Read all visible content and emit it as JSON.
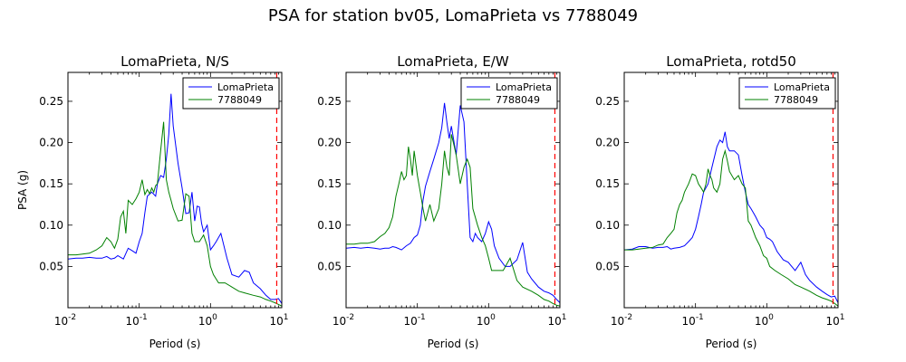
{
  "figure": {
    "suptitle": "PSA for station bv05, LomaPrieta vs 7788049"
  },
  "colors": {
    "series_1": "#0000ff",
    "series_2": "#008000",
    "marker_line": "#ff0000"
  },
  "chart_data": [
    {
      "type": "line",
      "title": "LomaPrieta, N/S",
      "xlabel": "Period (s)",
      "ylabel": "PSA (g)",
      "xscale": "log",
      "xlim": [
        0.01,
        10
      ],
      "ylim": [
        0.0,
        0.285
      ],
      "x_ticks": [
        {
          "value": 0.01,
          "base": "10",
          "exp": "-2"
        },
        {
          "value": 0.1,
          "base": "10",
          "exp": "-1"
        },
        {
          "value": 1,
          "base": "10",
          "exp": "0"
        },
        {
          "value": 10,
          "base": "10",
          "exp": "1"
        }
      ],
      "y_ticks": [
        "0.05",
        "0.10",
        "0.15",
        "0.20",
        "0.25"
      ],
      "legend_position": "top-right",
      "vline_x": 8.5,
      "series": [
        {
          "name": "LomaPrieta",
          "x": [
            0.01,
            0.013,
            0.016,
            0.02,
            0.025,
            0.03,
            0.035,
            0.04,
            0.045,
            0.05,
            0.06,
            0.07,
            0.08,
            0.09,
            0.1,
            0.11,
            0.12,
            0.13,
            0.15,
            0.17,
            0.18,
            0.2,
            0.22,
            0.24,
            0.26,
            0.28,
            0.3,
            0.35,
            0.4,
            0.45,
            0.5,
            0.55,
            0.6,
            0.65,
            0.7,
            0.75,
            0.8,
            0.9,
            1.0,
            1.1,
            1.2,
            1.4,
            1.7,
            2.0,
            2.5,
            3.0,
            3.5,
            4.0,
            5.0,
            6.0,
            7.0,
            8.0,
            9.0,
            10.0
          ],
          "values": [
            0.059,
            0.06,
            0.06,
            0.061,
            0.06,
            0.06,
            0.062,
            0.059,
            0.06,
            0.063,
            0.059,
            0.072,
            0.069,
            0.066,
            0.08,
            0.09,
            0.115,
            0.135,
            0.14,
            0.135,
            0.15,
            0.16,
            0.158,
            0.18,
            0.21,
            0.259,
            0.22,
            0.175,
            0.145,
            0.114,
            0.115,
            0.14,
            0.105,
            0.123,
            0.122,
            0.102,
            0.092,
            0.1,
            0.07,
            0.075,
            0.08,
            0.09,
            0.06,
            0.04,
            0.037,
            0.045,
            0.043,
            0.03,
            0.023,
            0.015,
            0.01,
            0.01,
            0.011,
            0.005
          ]
        },
        {
          "name": "7788049",
          "x": [
            0.01,
            0.013,
            0.016,
            0.02,
            0.025,
            0.03,
            0.035,
            0.04,
            0.045,
            0.05,
            0.055,
            0.06,
            0.065,
            0.07,
            0.08,
            0.09,
            0.1,
            0.11,
            0.12,
            0.13,
            0.14,
            0.15,
            0.16,
            0.17,
            0.18,
            0.2,
            0.22,
            0.24,
            0.26,
            0.28,
            0.3,
            0.35,
            0.4,
            0.45,
            0.5,
            0.55,
            0.6,
            0.7,
            0.8,
            0.9,
            1.0,
            1.1,
            1.3,
            1.6,
            2.0,
            2.5,
            3.0,
            4.0,
            5.0,
            6.0,
            7.0,
            8.0,
            9.0,
            10.0
          ],
          "values": [
            0.064,
            0.064,
            0.065,
            0.066,
            0.07,
            0.075,
            0.085,
            0.08,
            0.072,
            0.083,
            0.11,
            0.117,
            0.09,
            0.13,
            0.125,
            0.132,
            0.14,
            0.155,
            0.137,
            0.143,
            0.138,
            0.145,
            0.14,
            0.148,
            0.15,
            0.19,
            0.225,
            0.155,
            0.14,
            0.13,
            0.12,
            0.105,
            0.106,
            0.138,
            0.135,
            0.09,
            0.08,
            0.08,
            0.088,
            0.075,
            0.05,
            0.04,
            0.03,
            0.03,
            0.025,
            0.02,
            0.018,
            0.015,
            0.013,
            0.01,
            0.008,
            0.006,
            0.004,
            0.002
          ]
        }
      ]
    },
    {
      "type": "line",
      "title": "LomaPrieta, E/W",
      "xlabel": "Period (s)",
      "ylabel": "",
      "xscale": "log",
      "xlim": [
        0.01,
        10
      ],
      "ylim": [
        0.0,
        0.285
      ],
      "x_ticks": [
        {
          "value": 0.01,
          "base": "10",
          "exp": "-2"
        },
        {
          "value": 0.1,
          "base": "10",
          "exp": "-1"
        },
        {
          "value": 1,
          "base": "10",
          "exp": "0"
        },
        {
          "value": 10,
          "base": "10",
          "exp": "1"
        }
      ],
      "y_ticks": [
        "0.05",
        "0.10",
        "0.15",
        "0.20",
        "0.25"
      ],
      "legend_position": "top-right",
      "vline_x": 8.5,
      "series": [
        {
          "name": "LomaPrieta",
          "x": [
            0.01,
            0.013,
            0.016,
            0.02,
            0.025,
            0.03,
            0.035,
            0.04,
            0.045,
            0.05,
            0.06,
            0.07,
            0.08,
            0.09,
            0.1,
            0.11,
            0.12,
            0.13,
            0.15,
            0.17,
            0.2,
            0.22,
            0.24,
            0.26,
            0.28,
            0.3,
            0.35,
            0.4,
            0.45,
            0.5,
            0.55,
            0.6,
            0.65,
            0.7,
            0.8,
            0.9,
            1.0,
            1.1,
            1.2,
            1.4,
            1.7,
            2.0,
            2.5,
            3.0,
            3.5,
            4.0,
            5.0,
            6.0,
            7.0,
            8.0,
            9.0,
            10.0
          ],
          "values": [
            0.072,
            0.073,
            0.072,
            0.073,
            0.072,
            0.071,
            0.072,
            0.072,
            0.074,
            0.073,
            0.07,
            0.075,
            0.078,
            0.085,
            0.088,
            0.1,
            0.13,
            0.147,
            0.165,
            0.18,
            0.2,
            0.218,
            0.248,
            0.224,
            0.205,
            0.22,
            0.185,
            0.245,
            0.225,
            0.15,
            0.085,
            0.08,
            0.09,
            0.085,
            0.08,
            0.09,
            0.104,
            0.095,
            0.075,
            0.06,
            0.05,
            0.05,
            0.058,
            0.079,
            0.043,
            0.035,
            0.025,
            0.02,
            0.018,
            0.015,
            0.01,
            0.006
          ]
        },
        {
          "name": "7788049",
          "x": [
            0.01,
            0.013,
            0.016,
            0.02,
            0.025,
            0.03,
            0.035,
            0.04,
            0.045,
            0.05,
            0.055,
            0.06,
            0.065,
            0.07,
            0.075,
            0.08,
            0.085,
            0.09,
            0.1,
            0.11,
            0.12,
            0.13,
            0.15,
            0.17,
            0.2,
            0.22,
            0.24,
            0.26,
            0.28,
            0.3,
            0.32,
            0.35,
            0.4,
            0.45,
            0.5,
            0.55,
            0.6,
            0.7,
            0.8,
            0.9,
            1.0,
            1.1,
            1.3,
            1.6,
            2.0,
            2.5,
            3.0,
            4.0,
            5.0,
            6.0,
            7.0,
            8.0,
            9.0,
            10.0
          ],
          "values": [
            0.077,
            0.077,
            0.078,
            0.078,
            0.08,
            0.086,
            0.09,
            0.097,
            0.11,
            0.135,
            0.15,
            0.165,
            0.155,
            0.16,
            0.195,
            0.18,
            0.16,
            0.19,
            0.16,
            0.14,
            0.12,
            0.105,
            0.125,
            0.105,
            0.12,
            0.15,
            0.19,
            0.17,
            0.16,
            0.21,
            0.2,
            0.185,
            0.15,
            0.17,
            0.18,
            0.17,
            0.12,
            0.1,
            0.085,
            0.075,
            0.06,
            0.045,
            0.045,
            0.045,
            0.06,
            0.033,
            0.025,
            0.02,
            0.015,
            0.01,
            0.008,
            0.005,
            0.003,
            0.002
          ]
        }
      ]
    },
    {
      "type": "line",
      "title": "LomaPrieta, rotd50",
      "xlabel": "Period (s)",
      "ylabel": "",
      "xscale": "log",
      "xlim": [
        0.01,
        10
      ],
      "ylim": [
        0.0,
        0.285
      ],
      "x_ticks": [
        {
          "value": 0.01,
          "base": "10",
          "exp": "-2"
        },
        {
          "value": 0.1,
          "base": "10",
          "exp": "-1"
        },
        {
          "value": 1,
          "base": "10",
          "exp": "0"
        },
        {
          "value": 10,
          "base": "10",
          "exp": "1"
        }
      ],
      "y_ticks": [
        "0.05",
        "0.10",
        "0.15",
        "0.20",
        "0.25"
      ],
      "legend_position": "top-right",
      "vline_x": 8.5,
      "series": [
        {
          "name": "LomaPrieta",
          "x": [
            0.01,
            0.013,
            0.016,
            0.02,
            0.025,
            0.03,
            0.035,
            0.04,
            0.045,
            0.05,
            0.06,
            0.07,
            0.08,
            0.09,
            0.1,
            0.11,
            0.12,
            0.13,
            0.15,
            0.17,
            0.2,
            0.22,
            0.24,
            0.26,
            0.28,
            0.3,
            0.35,
            0.4,
            0.45,
            0.5,
            0.55,
            0.6,
            0.65,
            0.7,
            0.8,
            0.9,
            1.0,
            1.1,
            1.2,
            1.4,
            1.7,
            2.0,
            2.5,
            3.0,
            3.5,
            4.0,
            5.0,
            6.0,
            7.0,
            8.0,
            9.0,
            10.0
          ],
          "values": [
            0.07,
            0.071,
            0.074,
            0.074,
            0.072,
            0.073,
            0.073,
            0.074,
            0.071,
            0.072,
            0.073,
            0.075,
            0.08,
            0.085,
            0.095,
            0.11,
            0.125,
            0.14,
            0.15,
            0.17,
            0.195,
            0.203,
            0.2,
            0.213,
            0.195,
            0.19,
            0.19,
            0.185,
            0.16,
            0.14,
            0.125,
            0.12,
            0.115,
            0.11,
            0.1,
            0.095,
            0.085,
            0.083,
            0.08,
            0.068,
            0.058,
            0.055,
            0.045,
            0.055,
            0.04,
            0.033,
            0.025,
            0.02,
            0.016,
            0.013,
            0.014,
            0.006
          ]
        },
        {
          "name": "7788049",
          "x": [
            0.01,
            0.013,
            0.016,
            0.02,
            0.025,
            0.03,
            0.035,
            0.04,
            0.045,
            0.05,
            0.055,
            0.06,
            0.065,
            0.07,
            0.08,
            0.09,
            0.1,
            0.11,
            0.12,
            0.13,
            0.14,
            0.15,
            0.16,
            0.17,
            0.18,
            0.2,
            0.22,
            0.24,
            0.26,
            0.28,
            0.3,
            0.35,
            0.4,
            0.45,
            0.5,
            0.55,
            0.6,
            0.7,
            0.8,
            0.9,
            1.0,
            1.1,
            1.3,
            1.6,
            2.0,
            2.5,
            3.0,
            4.0,
            5.0,
            6.0,
            7.0,
            8.0,
            9.0,
            10.0
          ],
          "values": [
            0.07,
            0.07,
            0.071,
            0.072,
            0.073,
            0.076,
            0.077,
            0.085,
            0.09,
            0.095,
            0.115,
            0.125,
            0.13,
            0.14,
            0.15,
            0.162,
            0.16,
            0.15,
            0.145,
            0.14,
            0.15,
            0.168,
            0.16,
            0.155,
            0.145,
            0.14,
            0.15,
            0.18,
            0.19,
            0.178,
            0.165,
            0.155,
            0.16,
            0.15,
            0.145,
            0.105,
            0.1,
            0.085,
            0.075,
            0.063,
            0.06,
            0.05,
            0.045,
            0.04,
            0.035,
            0.028,
            0.025,
            0.02,
            0.015,
            0.012,
            0.01,
            0.008,
            0.005,
            0.002
          ]
        }
      ]
    }
  ]
}
